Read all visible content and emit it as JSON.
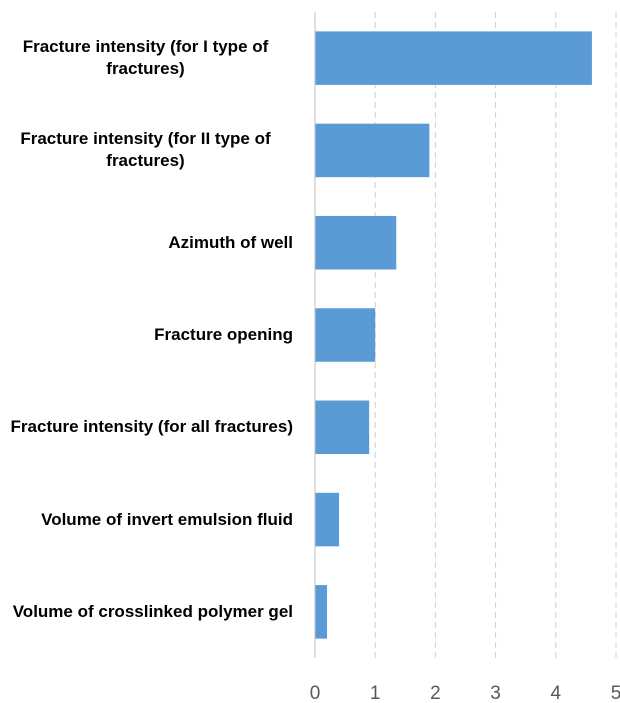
{
  "chart_data": {
    "type": "bar",
    "orientation": "horizontal",
    "categories": [
      "Fracture intensity (for I type of fractures)",
      "Fracture intensity (for II type of fractures)",
      "Azimuth of well",
      "Fracture opening",
      "Fracture intensity (for all fractures)",
      "Volume of invert emulsion fluid",
      "Volume of crosslinked polymer gel"
    ],
    "values": [
      4.6,
      1.9,
      1.35,
      1.0,
      0.9,
      0.4,
      0.2
    ],
    "color": "#5b9bd5",
    "xlim": [
      0,
      5
    ],
    "xticks": [
      0,
      1,
      2,
      3,
      4,
      5
    ],
    "grid": true
  }
}
